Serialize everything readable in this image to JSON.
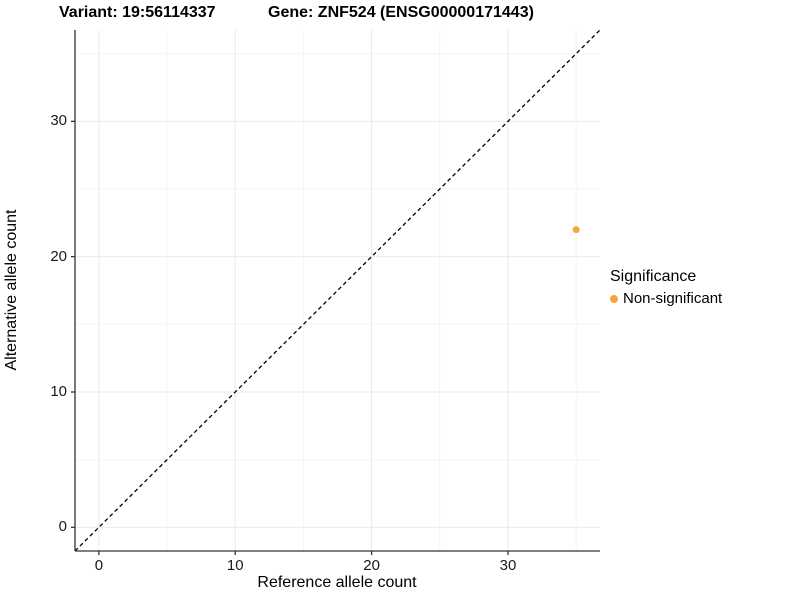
{
  "titles": {
    "variant": "Variant: 19:56114337",
    "gene": "Gene: ZNF524 (ENSG00000171443)"
  },
  "axes": {
    "x_label": "Reference allele count",
    "y_label": "Alternative allele count"
  },
  "legend": {
    "title": "Significance",
    "items": [
      {
        "label": "Non-significant",
        "color": "#FDA33B"
      }
    ]
  },
  "colors": {
    "point": "#FDA33B",
    "axis_line": "#333333",
    "major_grid": "#e9e9e9",
    "minor_grid": "#f4f4f4",
    "identity_line": "#000000"
  },
  "chart_data": {
    "type": "scatter",
    "title": "Variant: 19:56114337   Gene: ZNF524 (ENSG00000171443)",
    "xlabel": "Reference allele count",
    "ylabel": "Alternative allele count",
    "xlim": [
      -1.75,
      36.75
    ],
    "ylim": [
      -1.75,
      36.75
    ],
    "x_ticks": [
      0,
      10,
      20,
      30
    ],
    "y_ticks": [
      0,
      10,
      20,
      30
    ],
    "minor_ticks": [
      5,
      15,
      25,
      35
    ],
    "grid": true,
    "legend_position": "right",
    "series": [
      {
        "name": "Non-significant",
        "color": "#FDA33B",
        "points": [
          {
            "x": 35,
            "y": 22
          }
        ]
      }
    ],
    "reference_line": {
      "type": "identity",
      "slope": 1,
      "intercept": 0,
      "style": "dashed",
      "color": "#000000"
    }
  }
}
